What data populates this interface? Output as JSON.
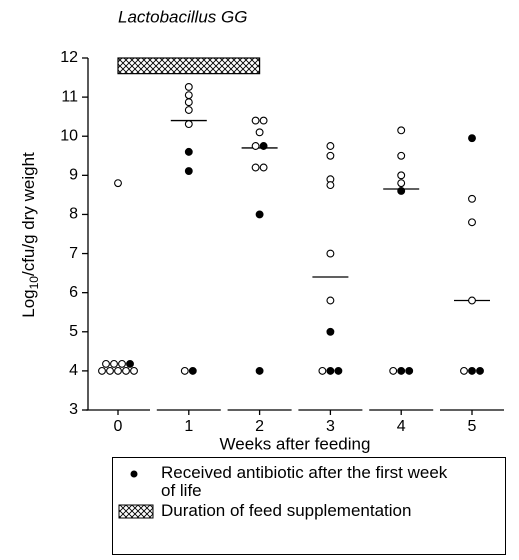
{
  "chart_data": {
    "type": "dot",
    "title": "Lactobacillus GG",
    "ylabel": {
      "base": "Log",
      "subscript": "10",
      "tail": "/cfu/g dry weight"
    },
    "xlabel": "Weeks after feeding",
    "categories": [
      "0",
      "1",
      "2",
      "3",
      "4",
      "5"
    ],
    "ylim": [
      3,
      12
    ],
    "yticks": [
      3,
      4,
      5,
      6,
      7,
      8,
      9,
      10,
      11,
      12
    ],
    "series": [
      {
        "marker": "open",
        "color": "#000000",
        "x": [
          0,
          0,
          0,
          0,
          0,
          0,
          0,
          0,
          0,
          1,
          1,
          1,
          1,
          1,
          1,
          2,
          2,
          2,
          2,
          2,
          2,
          3,
          3,
          3,
          3,
          3,
          3,
          3,
          4,
          4,
          4,
          4,
          4,
          5,
          5,
          5,
          5
        ],
        "values": [
          8.8,
          4,
          4,
          4,
          4,
          4,
          4,
          4,
          4,
          11.26,
          11.05,
          10.87,
          10.67,
          10.31,
          4,
          10.4,
          10.4,
          10.1,
          9.75,
          9.2,
          9.2,
          9.75,
          9.5,
          8.9,
          8.75,
          7.0,
          5.8,
          4,
          10.15,
          9.5,
          9.0,
          8.8,
          4,
          8.4,
          7.8,
          5.8,
          4
        ]
      },
      {
        "name": "Received antibiotic after the first week of life",
        "marker": "filled",
        "color": "#000000",
        "x": [
          0,
          1,
          1,
          1,
          2,
          2,
          2,
          3,
          3,
          3,
          4,
          4,
          4,
          5,
          5,
          5
        ],
        "values": [
          4,
          9.6,
          9.11,
          4,
          9.75,
          8.0,
          4,
          5.0,
          4,
          4,
          8.6,
          4,
          4,
          9.95,
          4,
          4
        ]
      }
    ],
    "medians": [
      null,
      10.4,
      9.7,
      6.4,
      8.65,
      5.8
    ],
    "supplementation": {
      "name": "Duration of feed supplementation",
      "x": [
        0,
        2
      ],
      "y": [
        11.6,
        12
      ]
    }
  }
}
